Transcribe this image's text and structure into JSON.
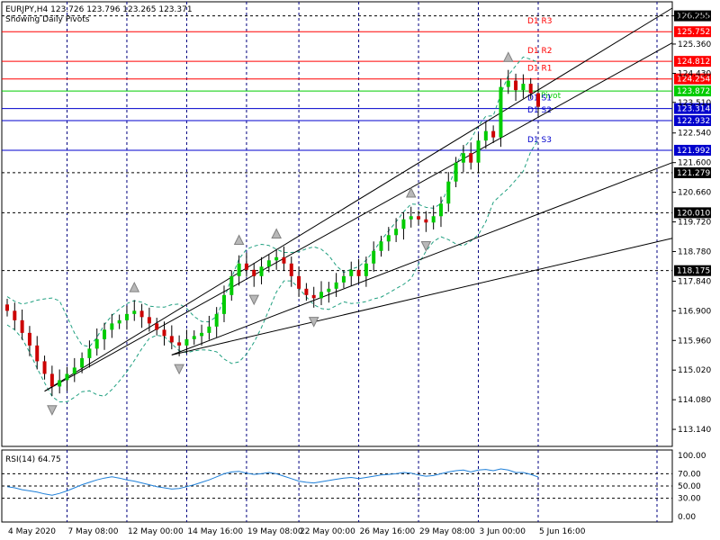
{
  "header": {
    "symbol_line": "EURJPY,H4  123.726 123.796 123.265 123.371",
    "subtitle": "Showing Daily Pivots"
  },
  "colors": {
    "bull": "#00cc00",
    "bear": "#cc0000",
    "resistance": "#ff0000",
    "support": "#0000cc",
    "pivot": "#00cc00",
    "grid": "#000080",
    "bands": "#20a080",
    "rsi": "#1e7fd8"
  },
  "chart_data": [
    {
      "type": "line",
      "title": "EURJPY,H4",
      "ylim": [
        112.6,
        126.7
      ],
      "y_ticks": [
        126.255,
        125.36,
        124.43,
        123.51,
        122.54,
        121.6,
        120.66,
        119.72,
        118.78,
        117.84,
        116.9,
        115.96,
        115.02,
        114.08,
        113.14
      ],
      "x_tick_labels": [
        "4 May 2020",
        "7 May 08:00",
        "12 May 00:00",
        "14 May 16:00",
        "19 May 08:00",
        "22 May 00:00",
        "26 May 16:00",
        "29 May 08:00",
        "3 Jun 00:00",
        "5 Jun 16:00"
      ],
      "pivot_lines": [
        {
          "label": "D1 R3",
          "value": 125.752,
          "kind": "resistance"
        },
        {
          "label": "D1 R2",
          "value": 124.812,
          "kind": "resistance"
        },
        {
          "label": "D1 R1",
          "value": 124.254,
          "kind": "resistance"
        },
        {
          "label": "Pivot",
          "value": 123.872,
          "kind": "pivot"
        },
        {
          "label": "D1 S1",
          "value": 123.314,
          "kind": "support"
        },
        {
          "label": "D1 S2",
          "value": 122.932,
          "kind": "support"
        },
        {
          "label": "D1 S3",
          "value": 121.992,
          "kind": "support"
        }
      ],
      "level_lines": [
        126.255,
        121.279,
        120.01,
        118.175
      ],
      "series": [
        {
          "name": "EURJPY",
          "close": [
            116.9,
            116.6,
            116.2,
            115.8,
            115.3,
            114.9,
            114.5,
            114.7,
            114.9,
            115.1,
            115.4,
            115.7,
            116.0,
            116.3,
            116.5,
            116.6,
            116.8,
            116.9,
            116.7,
            116.5,
            116.3,
            116.1,
            115.9,
            115.8,
            116.0,
            116.1,
            116.2,
            116.4,
            116.8,
            117.4,
            118.0,
            118.4,
            118.2,
            118.0,
            118.3,
            118.5,
            118.6,
            118.4,
            118.0,
            117.6,
            117.4,
            117.3,
            117.5,
            117.6,
            117.8,
            118.0,
            118.2,
            118.0,
            118.4,
            118.8,
            119.1,
            119.3,
            119.5,
            119.8,
            119.9,
            119.8,
            119.7,
            119.9,
            120.3,
            121.0,
            121.6,
            121.9,
            121.6,
            122.3,
            122.6,
            122.4,
            124.0,
            124.2,
            123.9,
            124.1,
            123.8,
            123.37
          ]
        },
        {
          "name": "RSI(14) 64.75",
          "ylim": [
            0,
            100
          ],
          "y_ticks": [
            100.0,
            70.0,
            50.0,
            30.0,
            0.0
          ],
          "values": [
            49,
            47,
            44,
            42,
            40,
            37,
            35,
            38,
            42,
            47,
            52,
            56,
            60,
            63,
            65,
            63,
            60,
            58,
            55,
            52,
            49,
            47,
            45,
            46,
            49,
            52,
            56,
            60,
            65,
            70,
            73,
            74,
            71,
            69,
            70,
            72,
            70,
            66,
            62,
            58,
            56,
            55,
            57,
            59,
            61,
            63,
            64,
            62,
            64,
            66,
            68,
            69,
            70,
            72,
            71,
            68,
            66,
            67,
            70,
            73,
            75,
            76,
            73,
            76,
            77,
            75,
            78,
            76,
            72,
            72,
            69,
            64.75
          ]
        }
      ]
    }
  ]
}
